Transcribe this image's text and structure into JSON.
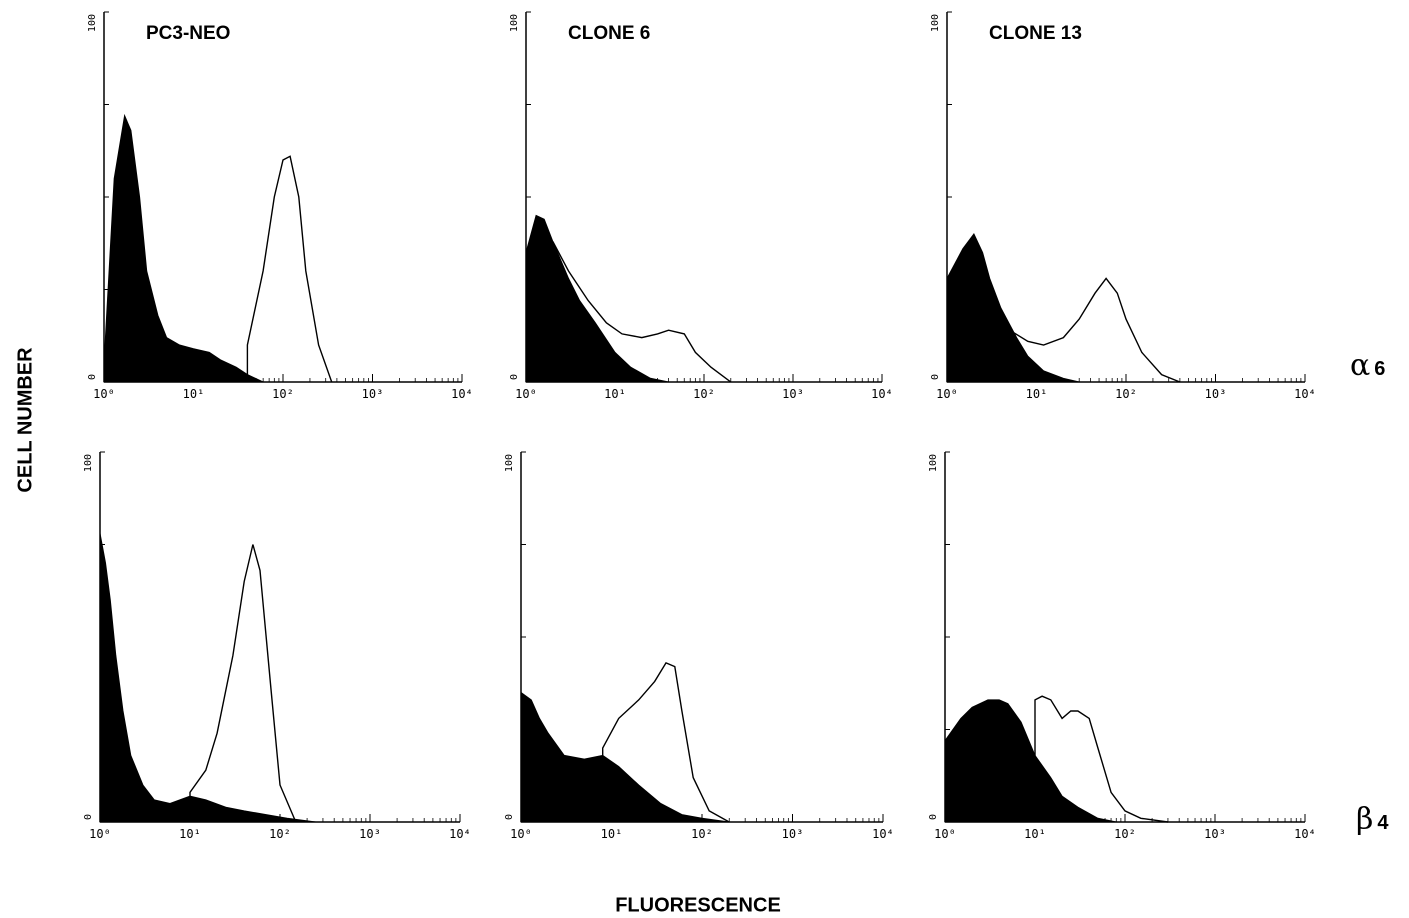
{
  "figure": {
    "ylabel": "CELL NUMBER",
    "xlabel": "FLUORESCENCE",
    "rows": [
      {
        "greek": "α",
        "sub": "6"
      },
      {
        "greek": "β",
        "sub": "4"
      }
    ],
    "columns": [
      "PC3-NEO",
      "CLONE 6",
      "CLONE 13"
    ]
  },
  "chart_data": [
    {
      "type": "area",
      "title": "PC3-NEO",
      "row": "α6",
      "xscale": "log",
      "xlim": [
        1,
        10000
      ],
      "ylim": [
        0,
        100
      ],
      "yticks": [
        "0",
        "100"
      ],
      "xticks": [
        "10⁰",
        "10¹",
        "10²",
        "10³",
        "10⁴"
      ],
      "series": [
        {
          "style": "filled",
          "x": [
            1,
            1.3,
            1.7,
            2,
            2.5,
            3,
            4,
            5,
            7,
            10,
            15,
            20,
            30,
            40,
            60
          ],
          "y": [
            5,
            55,
            72,
            68,
            50,
            30,
            18,
            12,
            10,
            9,
            8,
            6,
            4,
            2,
            0
          ]
        },
        {
          "style": "outline",
          "x": [
            40,
            60,
            80,
            100,
            120,
            150,
            180,
            250,
            350
          ],
          "y": [
            10,
            30,
            50,
            60,
            61,
            50,
            30,
            10,
            0
          ]
        }
      ]
    },
    {
      "type": "area",
      "title": "CLONE 6",
      "row": "α6",
      "xscale": "log",
      "xlim": [
        1,
        10000
      ],
      "ylim": [
        0,
        100
      ],
      "yticks": [
        "0",
        "100"
      ],
      "xticks": [
        "10⁰",
        "10¹",
        "10²",
        "10³",
        "10⁴"
      ],
      "series": [
        {
          "style": "filled",
          "x": [
            1,
            1.3,
            1.6,
            2,
            3,
            4,
            6,
            10,
            15,
            25,
            40
          ],
          "y": [
            35,
            45,
            44,
            38,
            28,
            22,
            16,
            8,
            4,
            1,
            0
          ]
        },
        {
          "style": "outline",
          "x": [
            2,
            3,
            5,
            8,
            12,
            20,
            30,
            40,
            60,
            80,
            120,
            200
          ],
          "y": [
            38,
            30,
            22,
            16,
            13,
            12,
            13,
            14,
            13,
            8,
            4,
            0
          ]
        }
      ]
    },
    {
      "type": "area",
      "title": "CLONE 13",
      "row": "α6",
      "xscale": "log",
      "xlim": [
        1,
        10000
      ],
      "ylim": [
        0,
        100
      ],
      "yticks": [
        "0",
        "100"
      ],
      "xticks": [
        "10⁰",
        "10¹",
        "10²",
        "10³",
        "10⁴"
      ],
      "series": [
        {
          "style": "filled",
          "x": [
            1,
            1.5,
            2,
            2.5,
            3,
            4,
            6,
            8,
            12,
            20,
            30
          ],
          "y": [
            28,
            36,
            40,
            35,
            28,
            20,
            12,
            7,
            3,
            1,
            0
          ]
        },
        {
          "style": "outline",
          "x": [
            5,
            8,
            12,
            20,
            30,
            45,
            60,
            80,
            100,
            150,
            250,
            400
          ],
          "y": [
            14,
            11,
            10,
            12,
            17,
            24,
            28,
            24,
            17,
            8,
            2,
            0
          ]
        }
      ]
    },
    {
      "type": "area",
      "title": "PC3-NEO",
      "row": "β4",
      "xscale": "log",
      "xlim": [
        1,
        10000
      ],
      "ylim": [
        0,
        100
      ],
      "yticks": [
        "0",
        "100"
      ],
      "xticks": [
        "10⁰",
        "10¹",
        "10²",
        "10³",
        "10⁴"
      ],
      "series": [
        {
          "style": "filled",
          "x": [
            1,
            1.15,
            1.3,
            1.5,
            1.8,
            2.2,
            3,
            4,
            6,
            10,
            15,
            25,
            40,
            70,
            120,
            250
          ],
          "y": [
            78,
            70,
            60,
            45,
            30,
            18,
            10,
            6,
            5,
            7,
            6,
            4,
            3,
            2,
            1,
            0
          ]
        },
        {
          "style": "outline",
          "x": [
            10,
            15,
            20,
            30,
            40,
            50,
            60,
            80,
            100,
            150
          ],
          "y": [
            8,
            14,
            24,
            45,
            65,
            75,
            68,
            35,
            10,
            0
          ]
        }
      ]
    },
    {
      "type": "area",
      "title": "CLONE 6",
      "row": "β4",
      "xscale": "log",
      "xlim": [
        1,
        10000
      ],
      "ylim": [
        0,
        100
      ],
      "yticks": [
        "0",
        "100"
      ],
      "xticks": [
        "10⁰",
        "10¹",
        "10²",
        "10³",
        "10⁴"
      ],
      "series": [
        {
          "style": "filled",
          "x": [
            1,
            1.3,
            1.6,
            2,
            3,
            5,
            8,
            12,
            20,
            35,
            60,
            100,
            200
          ],
          "y": [
            35,
            33,
            28,
            24,
            18,
            17,
            18,
            15,
            10,
            5,
            2,
            1,
            0
          ]
        },
        {
          "style": "outline",
          "x": [
            8,
            12,
            20,
            30,
            40,
            50,
            60,
            80,
            120,
            200
          ],
          "y": [
            20,
            28,
            33,
            38,
            43,
            42,
            30,
            12,
            3,
            0
          ]
        }
      ]
    },
    {
      "type": "area",
      "title": "CLONE 13",
      "row": "β4",
      "xscale": "log",
      "xlim": [
        1,
        10000
      ],
      "ylim": [
        0,
        100
      ],
      "yticks": [
        "0",
        "100"
      ],
      "xticks": [
        "10⁰",
        "10¹",
        "10²",
        "10³",
        "10⁴"
      ],
      "series": [
        {
          "style": "filled",
          "x": [
            1,
            1.5,
            2,
            3,
            4,
            5,
            7,
            10,
            15,
            20,
            30,
            50,
            80
          ],
          "y": [
            22,
            28,
            31,
            33,
            33,
            32,
            27,
            18,
            12,
            7,
            4,
            1,
            0
          ]
        },
        {
          "style": "outline",
          "x": [
            10,
            12,
            15,
            20,
            25,
            30,
            40,
            50,
            70,
            100,
            150,
            300
          ],
          "y": [
            33,
            34,
            33,
            28,
            30,
            30,
            28,
            20,
            8,
            3,
            1,
            0
          ]
        }
      ]
    }
  ]
}
